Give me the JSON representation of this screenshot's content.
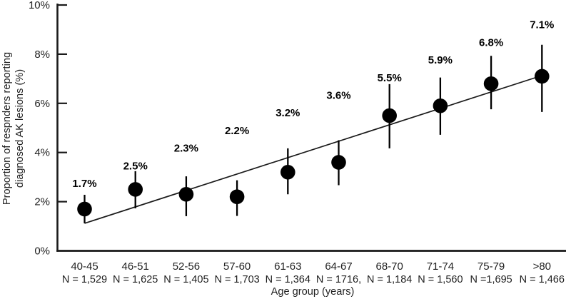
{
  "figure": {
    "ylabel_line1": "Proportion of respnders reporting",
    "ylabel_line2": "diagnosed AK lesions (%)",
    "xlabel": "Age group (years)"
  },
  "chart_data": {
    "type": "scatter",
    "title": "",
    "xlabel": "Age group (years)",
    "ylabel": "Proportion of respnders reporting diagnosed AK lesions (%)",
    "categories": [
      "40-45",
      "46-51",
      "52-56",
      "57-60",
      "61-63",
      "64-67",
      "68-70",
      "71-74",
      "75-79",
      ">80"
    ],
    "n_labels": [
      "N = 1,529",
      "N = 1,625",
      "N = 1,405",
      "N = 1,703",
      "N = 1,364",
      "N = 1716,",
      "N = 1,184",
      "N = 1,560",
      "N =1,695",
      "N = 1,466"
    ],
    "series": [
      {
        "name": "Proportion reporting diagnosed AK lesions",
        "values": [
          1.7,
          2.5,
          2.3,
          2.2,
          3.2,
          3.6,
          5.5,
          5.9,
          6.8,
          7.1
        ],
        "value_labels": [
          "1.7%",
          "2.5%",
          "2.3%",
          "2.2%",
          "3.2%",
          "3.6%",
          "5.5%",
          "5.9%",
          "6.8%",
          "7.1%"
        ],
        "error_low": [
          1.12,
          1.73,
          1.41,
          1.42,
          2.3,
          2.67,
          4.17,
          4.72,
          5.76,
          5.65
        ],
        "error_high": [
          2.28,
          3.24,
          3.03,
          2.87,
          4.17,
          4.5,
          6.78,
          7.05,
          7.93,
          8.38
        ]
      }
    ],
    "trendline": {
      "start_pct": 1.12,
      "end_pct": 7.13
    },
    "y_ticks": [
      {
        "value": 0,
        "label": "0%"
      },
      {
        "value": 2,
        "label": "2%"
      },
      {
        "value": 4,
        "label": "4%"
      },
      {
        "value": 6,
        "label": "6%"
      },
      {
        "value": 8,
        "label": "8%"
      },
      {
        "value": 10,
        "label": "10%"
      }
    ],
    "ylim": [
      0,
      10
    ],
    "grid": false,
    "legend": "none",
    "marker_color": "#000000",
    "line_color": "#1a1a1a",
    "text_color": "#1f1f1f"
  }
}
